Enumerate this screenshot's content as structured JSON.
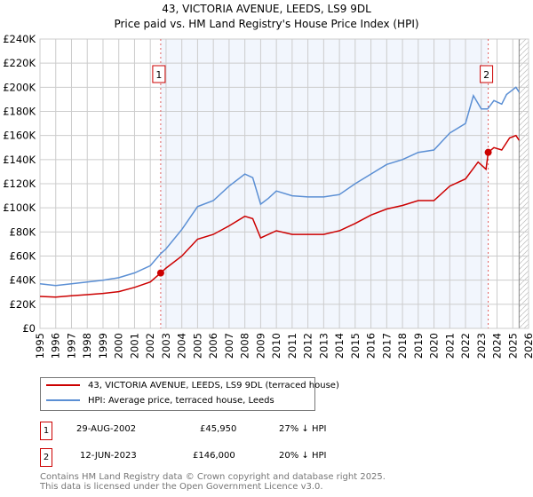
{
  "chart_data": {
    "type": "line",
    "title": "43, VICTORIA AVENUE, LEEDS, LS9 9DL",
    "subtitle": "Price paid vs. HM Land Registry's House Price Index (HPI)",
    "xlim": [
      1995,
      2026
    ],
    "ylim": [
      0,
      240000
    ],
    "grid": true,
    "y_ticks": [
      0,
      20000,
      40000,
      60000,
      80000,
      100000,
      120000,
      140000,
      160000,
      180000,
      200000,
      220000,
      240000
    ],
    "y_tick_labels": [
      "£0",
      "£20K",
      "£40K",
      "£60K",
      "£80K",
      "£100K",
      "£120K",
      "£140K",
      "£160K",
      "£180K",
      "£200K",
      "£220K",
      "£240K"
    ],
    "x_ticks": [
      1995,
      1996,
      1997,
      1998,
      1999,
      2000,
      2001,
      2002,
      2003,
      2004,
      2005,
      2006,
      2007,
      2008,
      2009,
      2010,
      2011,
      2012,
      2013,
      2014,
      2015,
      2016,
      2017,
      2018,
      2019,
      2020,
      2021,
      2022,
      2023,
      2024,
      2025,
      2026
    ],
    "series": [
      {
        "name": "43, VICTORIA AVENUE, LEEDS, LS9 9DL (terraced house)",
        "color": "#cc0000",
        "x": [
          1995,
          1996,
          1997,
          1998,
          1999,
          2000,
          2001,
          2002,
          2002.66,
          2003,
          2004,
          2005,
          2006,
          2007,
          2008,
          2008.5,
          2009,
          2010,
          2011,
          2012,
          2013,
          2014,
          2015,
          2016,
          2017,
          2018,
          2019,
          2020,
          2021,
          2022,
          2022.8,
          2023.3,
          2023.44,
          2023.8,
          2024.3,
          2024.8,
          2025.2,
          2025.4
        ],
        "y": [
          26500,
          26000,
          27000,
          28000,
          29000,
          30500,
          34000,
          38500,
          45950,
          50000,
          60000,
          74000,
          78000,
          85000,
          93000,
          91000,
          75000,
          81000,
          78000,
          78000,
          78000,
          81000,
          87000,
          94000,
          99000,
          102000,
          106000,
          106000,
          118000,
          124000,
          138000,
          132000,
          146000,
          150000,
          148000,
          158000,
          160000,
          156000
        ]
      },
      {
        "name": "HPI: Average price, terraced house, Leeds",
        "color": "#5b8fd4",
        "x": [
          1995,
          1996,
          1997,
          1998,
          1999,
          2000,
          2001,
          2002,
          2002.66,
          2003,
          2004,
          2005,
          2006,
          2007,
          2008,
          2008.5,
          2009,
          2009.5,
          2010,
          2011,
          2012,
          2013,
          2014,
          2015,
          2016,
          2017,
          2018,
          2019,
          2020,
          2021,
          2022,
          2022.5,
          2023,
          2023.4,
          2023.8,
          2024.3,
          2024.6,
          2025.2,
          2025.4
        ],
        "y": [
          37000,
          35500,
          37000,
          38500,
          40000,
          42000,
          46000,
          52000,
          62000,
          66000,
          82000,
          101000,
          106000,
          118000,
          128000,
          125000,
          103000,
          108000,
          114000,
          110000,
          109000,
          109000,
          111000,
          120000,
          128000,
          136000,
          140000,
          146000,
          148000,
          162000,
          170000,
          193000,
          182000,
          182000,
          189000,
          186000,
          194000,
          200000,
          196000
        ]
      }
    ],
    "annotations": [
      {
        "label": "1",
        "x": 2002.66,
        "y": 45950
      },
      {
        "label": "2",
        "x": 2023.44,
        "y": 146000
      }
    ],
    "forecast_start": 2025.4
  },
  "legend": {
    "items": [
      "43, VICTORIA AVENUE, LEEDS, LS9 9DL (terraced house)",
      "HPI: Average price, terraced house, Leeds"
    ]
  },
  "sales": [
    {
      "num": "1",
      "date": "29-AUG-2002",
      "price": "£45,950",
      "delta": "27% ↓ HPI"
    },
    {
      "num": "2",
      "date": "12-JUN-2023",
      "price": "£146,000",
      "delta": "20% ↓ HPI"
    }
  ],
  "footer": {
    "line1": "Contains HM Land Registry data © Crown copyright and database right 2025.",
    "line2": "This data is licensed under the Open Government Licence v3.0."
  }
}
